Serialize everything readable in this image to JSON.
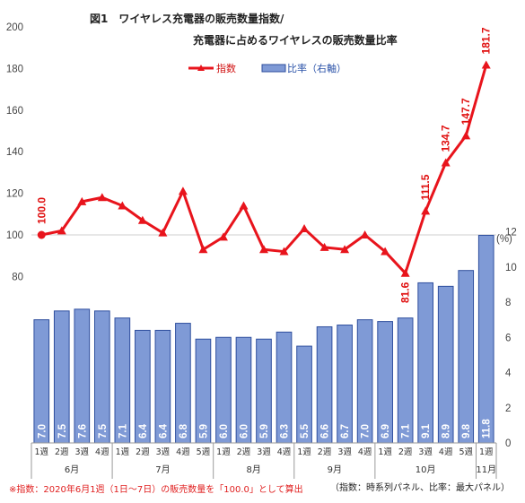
{
  "chart_data": {
    "type": "bar+line",
    "title_line1": "図1　ワイヤレス充電器の販売数量指数/",
    "title_line2": "充電器に占めるワイヤレスの販売数量比率",
    "legend": {
      "line": "指数",
      "bar": "比率（右軸）"
    },
    "colors": {
      "line": "#e8141c",
      "bar_fill": "#7f9ad6",
      "bar_stroke": "#2f4f9e"
    },
    "left_axis": {
      "ticks": [
        80,
        100,
        120,
        140,
        160,
        180,
        200
      ],
      "ylim": [
        0,
        200
      ]
    },
    "right_axis": {
      "unit": "(%)",
      "ticks": [
        0,
        2,
        4,
        6,
        8,
        10,
        12
      ],
      "ylim": [
        0,
        12
      ]
    },
    "categories": [
      "1週",
      "2週",
      "3週",
      "4週",
      "1週",
      "2週",
      "3週",
      "4週",
      "5週",
      "1週",
      "2週",
      "3週",
      "4週",
      "1週",
      "2週",
      "3週",
      "4週",
      "1週",
      "2週",
      "3週",
      "4週",
      "5週",
      "1週"
    ],
    "months": [
      {
        "label": "6月",
        "count": 4
      },
      {
        "label": "7月",
        "count": 5
      },
      {
        "label": "8月",
        "count": 4
      },
      {
        "label": "9月",
        "count": 4
      },
      {
        "label": "10月",
        "count": 5
      },
      {
        "label": "11月",
        "count": 1
      }
    ],
    "bar_values": [
      7.0,
      7.5,
      7.6,
      7.5,
      7.1,
      6.4,
      6.4,
      6.8,
      5.9,
      6.0,
      6.0,
      5.9,
      6.3,
      5.5,
      6.6,
      6.7,
      7.0,
      6.9,
      7.1,
      9.1,
      8.9,
      9.8,
      11.8
    ],
    "bar_labels": [
      "7.0",
      "7.5",
      "7.6",
      "7.5",
      "7.1",
      "6.4",
      "6.4",
      "6.8",
      "5.9",
      "6.0",
      "6.0",
      "5.9",
      "6.3",
      "5.5",
      "6.6",
      "6.7",
      "7.0",
      "6.9",
      "7.1",
      "9.1",
      "8.9",
      "9.8",
      "11.8"
    ],
    "line_values": [
      100.0,
      102,
      116,
      118,
      114,
      107,
      101,
      121,
      93,
      99,
      114,
      93,
      92,
      103,
      94,
      93,
      100,
      92,
      81.6,
      111.5,
      134.7,
      147.7,
      181.7
    ],
    "line_labels": [
      {
        "index": 0,
        "text": "100.0"
      },
      {
        "index": 18,
        "text": "81.6"
      },
      {
        "index": 19,
        "text": "111.5"
      },
      {
        "index": 20,
        "text": "134.7"
      },
      {
        "index": 21,
        "text": "147.7"
      },
      {
        "index": 22,
        "text": "181.7"
      }
    ],
    "footnote_left": "※指数：2020年6月1週（1日〜7日）の販売数量を「100.0」として算出",
    "footnote_right": "（指数：時系列パネル、比率：最大パネル）"
  }
}
